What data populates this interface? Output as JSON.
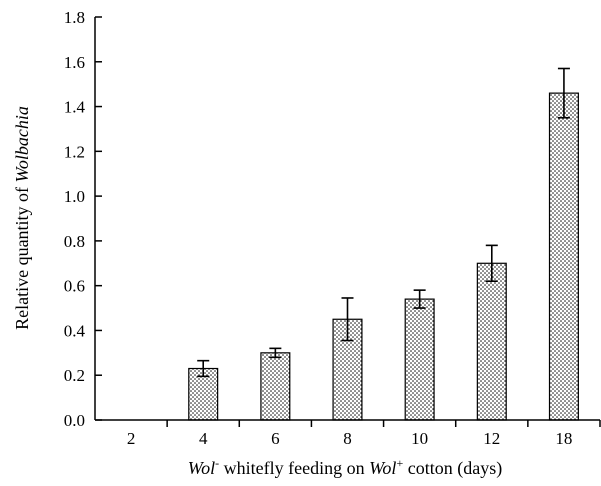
{
  "chart_data": {
    "type": "bar",
    "categories": [
      "2",
      "4",
      "6",
      "8",
      "10",
      "12",
      "18"
    ],
    "values": [
      0,
      0.23,
      0.3,
      0.45,
      0.54,
      0.7,
      1.46
    ],
    "errors": [
      0,
      0.035,
      0.02,
      0.095,
      0.04,
      0.08,
      0.11
    ],
    "ylim": [
      0,
      1.8
    ],
    "yticks": [
      "0.0",
      "0.2",
      "0.4",
      "0.6",
      "0.8",
      "1.0",
      "1.2",
      "1.4",
      "1.6",
      "1.8"
    ],
    "ylabel": {
      "prefix": "Relative quantity of ",
      "italic": "Wolbachia"
    },
    "xlabel": {
      "italic1": "Wol",
      "sup1": "-",
      "mid": " whitefly feeding on ",
      "italic2": "Wol",
      "sup2": "+",
      "suffix": " cotton (days)"
    },
    "grid": false,
    "legend": "none",
    "bar_fill": "dotted"
  }
}
